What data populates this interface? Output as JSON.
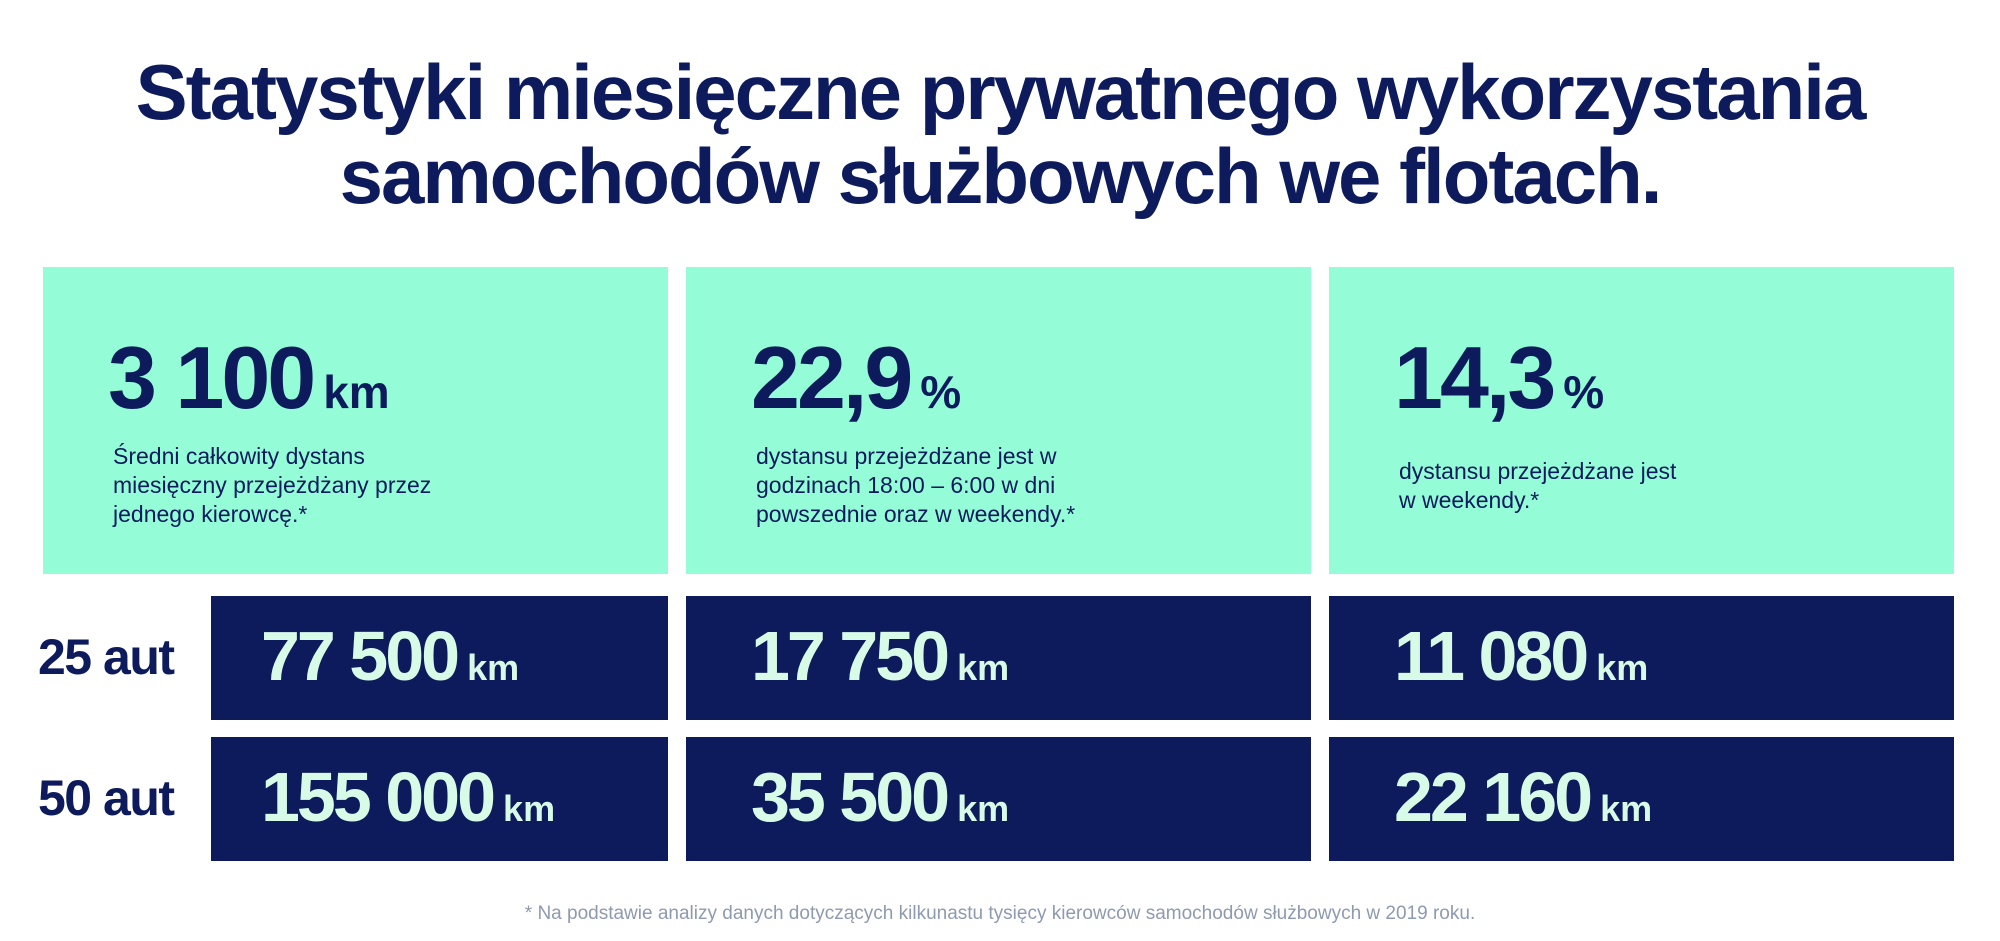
{
  "title": {
    "line1": "Statystyki miesięczne prywatnego wykorzystania",
    "line2": "samochodów służbowych we flotach."
  },
  "cards": [
    {
      "value": "3 100",
      "unit": "km",
      "description": [
        "Średni całkowity dystans",
        "miesięczny przejeżdżany przez",
        "jednego kierowcę.*"
      ]
    },
    {
      "value": "22,9",
      "unit": "%",
      "description": [
        "dystansu przejeżdżane jest w",
        "godzinach 18:00 – 6:00 w dni",
        "powszednie oraz w weekendy.*"
      ]
    },
    {
      "value": "14,3",
      "unit": "%",
      "description": [
        "dystansu przejeżdżane jest",
        "w weekendy.*"
      ]
    }
  ],
  "rows": [
    {
      "label": "25 aut",
      "values": [
        {
          "value": "77 500",
          "unit": "km"
        },
        {
          "value": "17 750",
          "unit": "km"
        },
        {
          "value": "11 080",
          "unit": "km"
        }
      ]
    },
    {
      "label": "50 aut",
      "values": [
        {
          "value": "155 000",
          "unit": "km"
        },
        {
          "value": "35 500",
          "unit": "km"
        },
        {
          "value": "22 160",
          "unit": "km"
        }
      ]
    }
  ],
  "footnote": "* Na podstawie analizy danych dotyczących kilkunastu tysięcy kierowców samochodów służbowych w 2019 roku.",
  "colors": {
    "navy": "#0d1b5c",
    "mint": "#94fdd7",
    "value_text": "#d8fbe8",
    "footnote": "#8e9ab0"
  }
}
